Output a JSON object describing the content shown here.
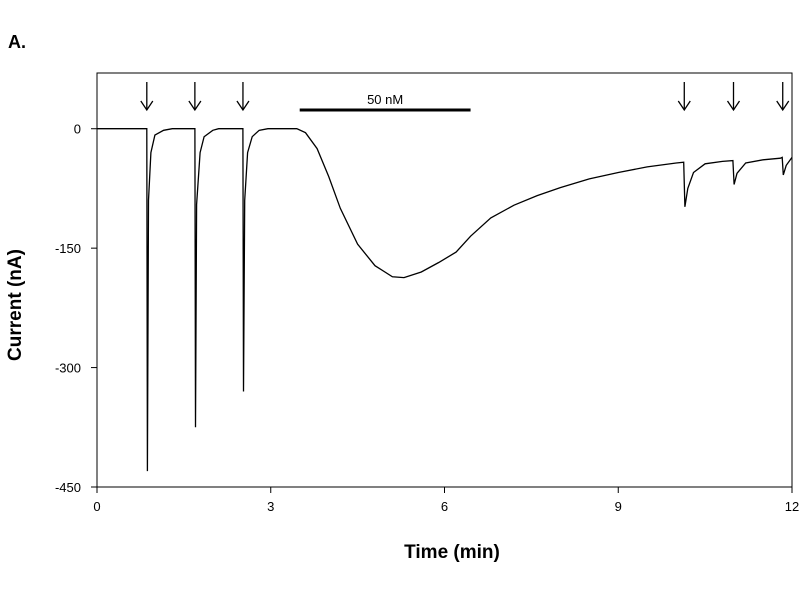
{
  "panel_label": "A.",
  "chart_data": {
    "type": "line",
    "title": "",
    "xlabel": "Time (min)",
    "ylabel": "Current (nA)",
    "xlim": [
      0,
      12
    ],
    "ylim": [
      -450,
      70
    ],
    "xticks": [
      0,
      3,
      6,
      9,
      12
    ],
    "yticks": [
      0,
      -150,
      -300,
      -450
    ],
    "grid": false,
    "series": [
      {
        "points": [
          [
            0,
            0
          ],
          [
            0.86,
            0
          ],
          [
            0.87,
            -430
          ],
          [
            0.89,
            -90
          ],
          [
            0.93,
            -30
          ],
          [
            1.0,
            -8
          ],
          [
            1.15,
            -2
          ],
          [
            1.3,
            0
          ],
          [
            1.69,
            0
          ],
          [
            1.7,
            -375
          ],
          [
            1.72,
            -95
          ],
          [
            1.78,
            -30
          ],
          [
            1.85,
            -10
          ],
          [
            2.0,
            -2
          ],
          [
            2.1,
            0
          ],
          [
            2.52,
            0
          ],
          [
            2.53,
            -330
          ],
          [
            2.55,
            -90
          ],
          [
            2.6,
            -30
          ],
          [
            2.68,
            -10
          ],
          [
            2.8,
            -2
          ],
          [
            2.95,
            0
          ],
          [
            3.45,
            0
          ],
          [
            3.6,
            -5
          ],
          [
            3.8,
            -25
          ],
          [
            4.0,
            -60
          ],
          [
            4.2,
            -100
          ],
          [
            4.5,
            -145
          ],
          [
            4.8,
            -172
          ],
          [
            5.1,
            -186
          ],
          [
            5.3,
            -187
          ],
          [
            5.6,
            -180
          ],
          [
            5.9,
            -168
          ],
          [
            6.2,
            -155
          ],
          [
            6.45,
            -135
          ],
          [
            6.8,
            -112
          ],
          [
            7.2,
            -96
          ],
          [
            7.6,
            -84
          ],
          [
            8.0,
            -74
          ],
          [
            8.5,
            -63
          ],
          [
            9.0,
            -55
          ],
          [
            9.5,
            -48
          ],
          [
            10.0,
            -43
          ],
          [
            10.13,
            -42
          ],
          [
            10.15,
            -98
          ],
          [
            10.2,
            -75
          ],
          [
            10.3,
            -55
          ],
          [
            10.5,
            -44
          ],
          [
            10.8,
            -41
          ],
          [
            10.98,
            -40
          ],
          [
            11.0,
            -70
          ],
          [
            11.05,
            -56
          ],
          [
            11.2,
            -43
          ],
          [
            11.5,
            -39
          ],
          [
            11.8,
            -37
          ],
          [
            11.83,
            -36
          ],
          [
            11.85,
            -58
          ],
          [
            11.9,
            -46
          ],
          [
            12.0,
            -36
          ]
        ]
      }
    ],
    "application_arrows_x": [
      0.86,
      1.69,
      2.52,
      10.14,
      10.99,
      11.84
    ],
    "annotation_bar": {
      "label": "50 nM",
      "x_start": 3.5,
      "x_end": 6.45
    }
  }
}
